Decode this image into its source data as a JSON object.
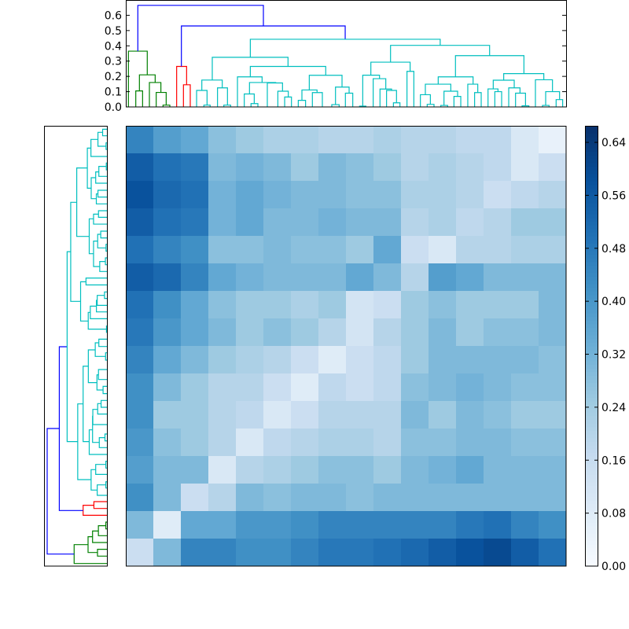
{
  "chart_data": [
    {
      "type": "heatmap",
      "colormap": "Blues",
      "colormap_stops": [
        "#f7fbff",
        "#deebf7",
        "#c6dbef",
        "#9ecae1",
        "#6baed6",
        "#4292c6",
        "#2171b5",
        "#08519c",
        "#08306b"
      ],
      "vmin": 0.0,
      "vmax": 0.665,
      "colorbar_ticks": [
        "0.00",
        "0.08",
        "0.16",
        "0.24",
        "0.32",
        "0.40",
        "0.48",
        "0.56",
        "0.64"
      ],
      "grid": false,
      "matrix_note_rows": "top to bottom, approximated as 16x16 block averages",
      "values": [
        [
          0.45,
          0.38,
          0.35,
          0.28,
          0.25,
          0.22,
          0.22,
          0.2,
          0.2,
          0.22,
          0.2,
          0.2,
          0.18,
          0.18,
          0.1,
          0.05
        ],
        [
          0.55,
          0.5,
          0.48,
          0.3,
          0.32,
          0.3,
          0.25,
          0.3,
          0.28,
          0.25,
          0.2,
          0.22,
          0.2,
          0.18,
          0.1,
          0.15
        ],
        [
          0.58,
          0.52,
          0.5,
          0.32,
          0.35,
          0.32,
          0.3,
          0.3,
          0.28,
          0.28,
          0.22,
          0.22,
          0.2,
          0.15,
          0.18,
          0.2
        ],
        [
          0.55,
          0.5,
          0.48,
          0.32,
          0.35,
          0.3,
          0.3,
          0.32,
          0.3,
          0.3,
          0.2,
          0.22,
          0.18,
          0.2,
          0.25,
          0.25
        ],
        [
          0.5,
          0.45,
          0.42,
          0.28,
          0.28,
          0.3,
          0.28,
          0.28,
          0.25,
          0.35,
          0.15,
          0.1,
          0.2,
          0.2,
          0.22,
          0.22
        ],
        [
          0.55,
          0.52,
          0.45,
          0.35,
          0.32,
          0.3,
          0.3,
          0.3,
          0.35,
          0.3,
          0.2,
          0.38,
          0.35,
          0.3,
          0.3,
          0.3
        ],
        [
          0.5,
          0.42,
          0.35,
          0.28,
          0.25,
          0.25,
          0.22,
          0.25,
          0.12,
          0.15,
          0.25,
          0.28,
          0.25,
          0.25,
          0.25,
          0.3
        ],
        [
          0.48,
          0.4,
          0.35,
          0.3,
          0.25,
          0.28,
          0.25,
          0.2,
          0.12,
          0.2,
          0.25,
          0.3,
          0.25,
          0.28,
          0.28,
          0.3
        ],
        [
          0.45,
          0.35,
          0.3,
          0.25,
          0.22,
          0.2,
          0.15,
          0.08,
          0.15,
          0.18,
          0.25,
          0.3,
          0.3,
          0.3,
          0.3,
          0.28
        ],
        [
          0.42,
          0.3,
          0.25,
          0.2,
          0.2,
          0.15,
          0.08,
          0.18,
          0.15,
          0.18,
          0.28,
          0.3,
          0.32,
          0.3,
          0.28,
          0.28
        ],
        [
          0.42,
          0.25,
          0.25,
          0.2,
          0.18,
          0.1,
          0.15,
          0.2,
          0.2,
          0.2,
          0.3,
          0.25,
          0.3,
          0.28,
          0.25,
          0.25
        ],
        [
          0.4,
          0.28,
          0.25,
          0.2,
          0.1,
          0.18,
          0.2,
          0.22,
          0.22,
          0.2,
          0.28,
          0.28,
          0.3,
          0.3,
          0.28,
          0.28
        ],
        [
          0.38,
          0.3,
          0.3,
          0.1,
          0.2,
          0.22,
          0.25,
          0.28,
          0.28,
          0.25,
          0.3,
          0.32,
          0.35,
          0.3,
          0.3,
          0.3
        ],
        [
          0.42,
          0.3,
          0.15,
          0.2,
          0.3,
          0.28,
          0.3,
          0.3,
          0.28,
          0.3,
          0.3,
          0.3,
          0.3,
          0.3,
          0.3,
          0.3
        ],
        [
          0.3,
          0.08,
          0.35,
          0.35,
          0.4,
          0.4,
          0.42,
          0.45,
          0.45,
          0.45,
          0.45,
          0.45,
          0.48,
          0.5,
          0.45,
          0.42
        ],
        [
          0.15,
          0.3,
          0.45,
          0.45,
          0.42,
          0.42,
          0.45,
          0.48,
          0.48,
          0.5,
          0.52,
          0.55,
          0.58,
          0.6,
          0.55,
          0.5
        ]
      ]
    },
    {
      "type": "dendrogram",
      "orientation": "top",
      "ylim": [
        0,
        0.7
      ],
      "yticks": [
        "0.0",
        "0.1",
        "0.2",
        "0.3",
        "0.4",
        "0.5",
        "0.6"
      ],
      "leaf_range": [
        0,
        64
      ],
      "colors": {
        "g": "#008000",
        "r": "#ff0000",
        "c": "#00bfbf",
        "b": "#0000ff"
      },
      "links": [
        [
          1.45,
          2.44,
          0,
          0,
          0.105,
          "g"
        ],
        [
          5.41,
          6.4,
          0,
          0,
          0.012,
          "g"
        ],
        [
          4.42,
          5.87,
          0,
          0.012,
          0.095,
          "g"
        ],
        [
          3.43,
          5.1,
          0,
          0.095,
          0.16,
          "g"
        ],
        [
          1.98,
          4.27,
          0.105,
          0.16,
          0.21,
          "g"
        ],
        [
          0.38,
          3.12,
          0,
          0.21,
          0.365,
          "g"
        ],
        [
          8.38,
          9.37,
          0,
          0,
          0.145,
          "r"
        ],
        [
          7.39,
          8.84,
          0,
          0.145,
          0.265,
          "r"
        ],
        [
          8.08,
          31.89,
          0.265,
          0.443,
          0.53,
          "b"
        ],
        [
          1.75,
          20.0,
          0.365,
          0.53,
          0.665,
          "b"
        ],
        [
          18.1,
          45.7,
          0.325,
          0.403,
          0.443,
          "c"
        ],
        [
          12.57,
          23.58,
          0.176,
          0.265,
          0.325,
          "c"
        ],
        [
          11.05,
          14.02,
          0.108,
          0.125,
          0.176,
          "c"
        ],
        [
          10.29,
          11.81,
          0,
          0.012,
          0.108,
          "c"
        ],
        [
          11.35,
          12.26,
          0,
          0,
          0.012,
          "c"
        ],
        [
          13.33,
          14.78,
          0,
          0.012,
          0.125,
          "c"
        ],
        [
          14.25,
          15.24,
          0,
          0,
          0.012,
          "c"
        ],
        [
          18.1,
          29.06,
          0.197,
          0.207,
          0.265,
          "c"
        ],
        [
          16.23,
          19.81,
          0,
          0.16,
          0.197,
          "c"
        ],
        [
          17.98,
          21.79,
          0.085,
          0.157,
          0.16,
          "c"
        ],
        [
          17.22,
          18.67,
          0,
          0.022,
          0.085,
          "c"
        ],
        [
          18.2,
          19.2,
          0,
          0,
          0.022,
          "c"
        ],
        [
          20.57,
          22.78,
          0,
          0.103,
          0.157,
          "c"
        ],
        [
          22.1,
          23.62,
          0,
          0.065,
          0.103,
          "c"
        ],
        [
          23.09,
          24.08,
          0,
          0,
          0.065,
          "c"
        ],
        [
          26.67,
          31.43,
          0.111,
          0.13,
          0.207,
          "c"
        ],
        [
          25.6,
          27.8,
          0.043,
          0.094,
          0.111,
          "c"
        ],
        [
          25.07,
          26.13,
          0,
          0,
          0.043,
          "c"
        ],
        [
          27.12,
          28.57,
          0,
          0,
          0.094,
          "c"
        ],
        [
          30.48,
          32.46,
          0.015,
          0.09,
          0.13,
          "c"
        ],
        [
          29.94,
          31.01,
          0,
          0,
          0.015,
          "c"
        ],
        [
          31.92,
          32.99,
          0,
          0,
          0.09,
          "c"
        ],
        [
          38.48,
          52.88,
          0.293,
          0.336,
          0.403,
          "c"
        ],
        [
          35.62,
          41.33,
          0.208,
          0.233,
          0.293,
          "c"
        ],
        [
          34.44,
          36.88,
          0.005,
          0.185,
          0.208,
          "c"
        ],
        [
          33.98,
          34.9,
          0,
          0,
          0.005,
          "c"
        ],
        [
          35.96,
          37.79,
          0,
          0.117,
          0.185,
          "c"
        ],
        [
          36.95,
          38.63,
          0,
          0.108,
          0.117,
          "c"
        ],
        [
          37.9,
          39.35,
          0,
          0.027,
          0.108,
          "c"
        ],
        [
          38.9,
          39.85,
          0,
          0,
          0.027,
          "c"
        ],
        [
          40.87,
          41.87,
          0,
          0,
          0.233,
          "c"
        ],
        [
          47.92,
          57.87,
          0.197,
          0.218,
          0.336,
          "c"
        ],
        [
          45.41,
          50.48,
          0.149,
          0.149,
          0.197,
          "c"
        ],
        [
          43.54,
          47.24,
          0.08,
          0.103,
          0.149,
          "c"
        ],
        [
          42.82,
          44.27,
          0,
          0.017,
          0.08,
          "c"
        ],
        [
          43.81,
          44.8,
          0,
          0,
          0.017,
          "c"
        ],
        [
          46.25,
          48.23,
          0.01,
          0.069,
          0.103,
          "c"
        ],
        [
          45.79,
          46.78,
          0,
          0,
          0.01,
          "c"
        ],
        [
          47.7,
          48.69,
          0,
          0,
          0.069,
          "c"
        ],
        [
          49.71,
          51.16,
          0,
          0.094,
          0.149,
          "c"
        ],
        [
          50.7,
          51.66,
          0,
          0,
          0.094,
          "c"
        ],
        [
          54.93,
          60.76,
          0.175,
          0.178,
          0.218,
          "c"
        ],
        [
          53.41,
          56.46,
          0.118,
          0.125,
          0.175,
          "c"
        ],
        [
          52.65,
          54.1,
          0,
          0.1,
          0.118,
          "c"
        ],
        [
          53.64,
          54.63,
          0,
          0,
          0.1,
          "c"
        ],
        [
          55.66,
          57.3,
          0,
          0.09,
          0.125,
          "c"
        ],
        [
          56.65,
          58.1,
          0,
          0.007,
          0.09,
          "c"
        ],
        [
          57.6,
          58.59,
          0,
          0,
          0.007,
          "c"
        ],
        [
          59.54,
          62.02,
          0,
          0.1,
          0.178,
          "c"
        ],
        [
          61.03,
          63.05,
          0.01,
          0.048,
          0.1,
          "c"
        ],
        [
          60.57,
          61.52,
          0,
          0,
          0.01,
          "c"
        ],
        [
          62.55,
          63.5,
          0,
          0,
          0.048,
          "c"
        ]
      ]
    },
    {
      "type": "dendrogram",
      "orientation": "left",
      "same_tree_as": "top",
      "xlim": [
        0,
        0.7
      ]
    }
  ]
}
